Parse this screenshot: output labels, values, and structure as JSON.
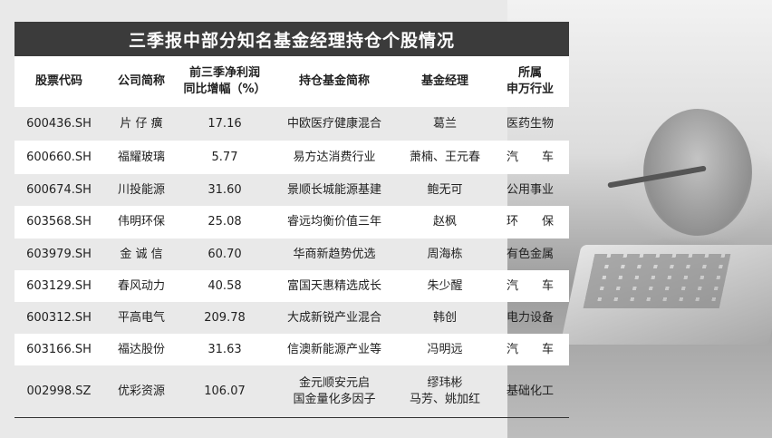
{
  "title": "三季报中部分知名基金经理持仓个股情况",
  "headers": [
    [
      "股票代码"
    ],
    [
      "公司简称"
    ],
    [
      "前三季净利润",
      "同比增幅（%）"
    ],
    [
      "持仓基金简称"
    ],
    [
      "基金经理"
    ],
    [
      "所属",
      "申万行业"
    ]
  ],
  "rows": [
    {
      "code": "600436.SH",
      "company": "片 仔 癀",
      "growth": "17.16",
      "fund": [
        "中欧医疗健康混合"
      ],
      "manager": [
        "葛兰"
      ],
      "industry": "医药生物"
    },
    {
      "code": "600660.SH",
      "company": "福耀玻璃",
      "growth": "5.77",
      "fund": [
        "易方达消费行业"
      ],
      "manager": [
        "萧楠、王元春"
      ],
      "industry": "汽　　车"
    },
    {
      "code": "600674.SH",
      "company": "川投能源",
      "growth": "31.60",
      "fund": [
        "景顺长城能源基建"
      ],
      "manager": [
        "鲍无可"
      ],
      "industry": "公用事业"
    },
    {
      "code": "603568.SH",
      "company": "伟明环保",
      "growth": "25.08",
      "fund": [
        "睿远均衡价值三年"
      ],
      "manager": [
        "赵枫"
      ],
      "industry": "环　　保"
    },
    {
      "code": "603979.SH",
      "company": "金 诚 信",
      "growth": "60.70",
      "fund": [
        "华商新趋势优选"
      ],
      "manager": [
        "周海栋"
      ],
      "industry": "有色金属"
    },
    {
      "code": "603129.SH",
      "company": "春风动力",
      "growth": "40.58",
      "fund": [
        "富国天惠精选成长"
      ],
      "manager": [
        "朱少醒"
      ],
      "industry": "汽　　车"
    },
    {
      "code": "600312.SH",
      "company": "平高电气",
      "growth": "209.78",
      "fund": [
        "大成新锐产业混合"
      ],
      "manager": [
        "韩创"
      ],
      "industry": "电力设备"
    },
    {
      "code": "603166.SH",
      "company": "福达股份",
      "growth": "31.63",
      "fund": [
        "信澳新能源产业等"
      ],
      "manager": [
        "冯明远"
      ],
      "industry": "汽　　车"
    },
    {
      "code": "002998.SZ",
      "company": "优彩资源",
      "growth": "106.07",
      "fund": [
        "金元顺安元启",
        "国金量化多因子"
      ],
      "manager": [
        "缪玮彬",
        "马芳、姚加红"
      ],
      "industry": "基础化工"
    }
  ]
}
